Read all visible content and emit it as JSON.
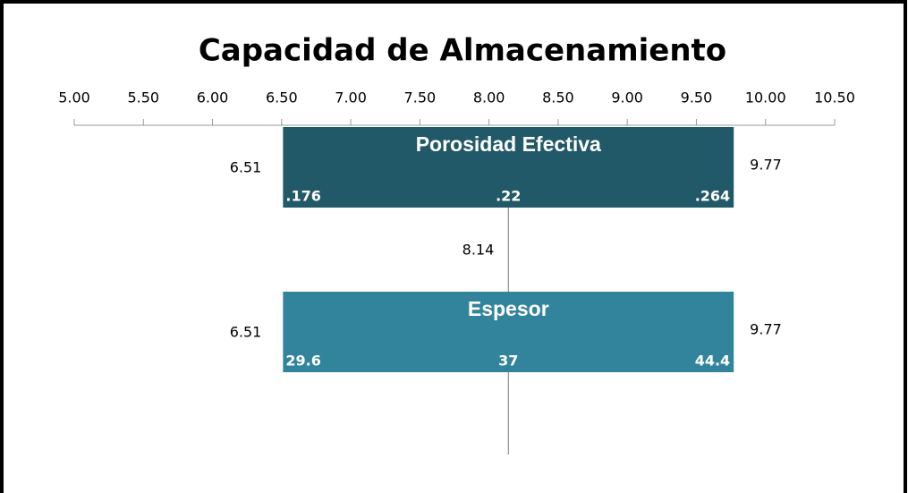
{
  "chart_data": {
    "type": "tornado",
    "title": "Capacidad de Almacenamiento",
    "xlim": [
      5,
      10.5
    ],
    "xticks": [
      {
        "value": 5,
        "label": "5.00"
      },
      {
        "value": 5.5,
        "label": "5.50"
      },
      {
        "value": 6,
        "label": "6.00"
      },
      {
        "value": 6.5,
        "label": "6.50"
      },
      {
        "value": 7,
        "label": "7.00"
      },
      {
        "value": 7.5,
        "label": "7.50"
      },
      {
        "value": 8,
        "label": "8.00"
      },
      {
        "value": 8.5,
        "label": "8.50"
      },
      {
        "value": 9,
        "label": "9.00"
      },
      {
        "value": 9.5,
        "label": "9.50"
      },
      {
        "value": 10,
        "label": "10.00"
      },
      {
        "value": 10.5,
        "label": "10.50"
      }
    ],
    "base": 8.14,
    "categories": [
      "Porosidad Efectiva",
      "Espesor"
    ],
    "low": [
      6.51,
      6.51
    ],
    "high": [
      9.77,
      9.77
    ],
    "inputs": [
      [
        ".176",
        ".22",
        ".264"
      ],
      [
        "29.6",
        "37",
        "44.4"
      ]
    ],
    "colors": [
      "#215968",
      "#31849b"
    ]
  }
}
